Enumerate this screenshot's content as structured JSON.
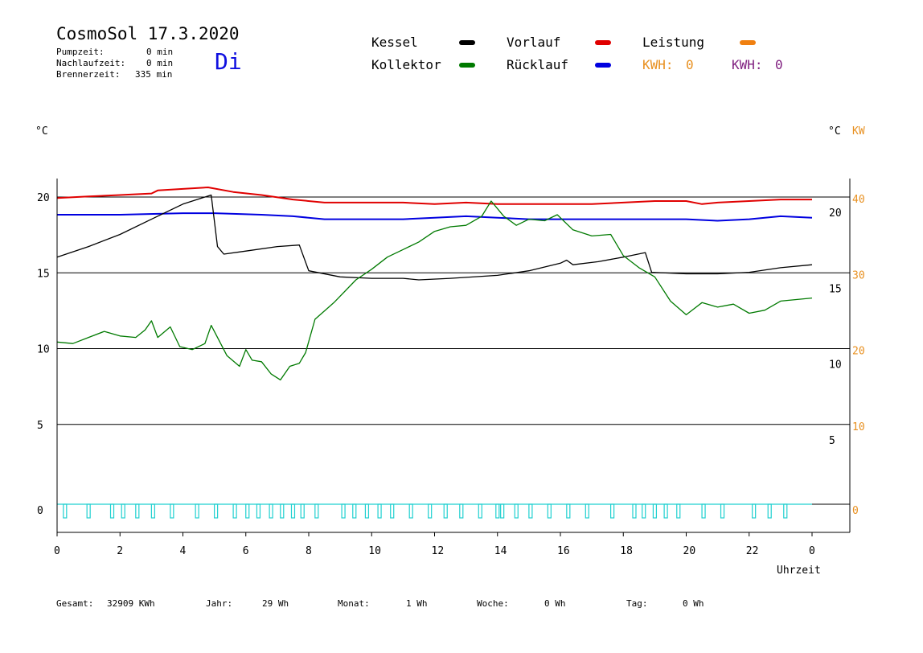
{
  "header": {
    "title": "CosmoSol 17.3.2020",
    "day": "Di",
    "stats": [
      {
        "label": "Pumpzeit:",
        "value": "0 min"
      },
      {
        "label": "Nachlaufzeit:",
        "value": "0 min"
      },
      {
        "label": "Brennerzeit:",
        "value": "335 min"
      }
    ]
  },
  "legend": {
    "kessel": {
      "label": "Kessel",
      "color": "#000000"
    },
    "vorlauf": {
      "label": "Vorlauf",
      "color": "#e00000"
    },
    "leistung": {
      "label": "Leistung",
      "color": "#f08010"
    },
    "kollektor": {
      "label": "Kollektor",
      "color": "#007a00"
    },
    "ruecklauf": {
      "label": "Rücklauf",
      "color": "#0000e0"
    },
    "kwh1": {
      "label": "KWH:",
      "value": "0",
      "color": "#e89020"
    },
    "kwh2": {
      "label": "KWH:",
      "value": "0",
      "color": "#802080"
    }
  },
  "units": {
    "left": "°C",
    "right_c": "°C",
    "right_kw": "KW"
  },
  "footer": [
    {
      "label": "Gesamt:",
      "value": "32909 KWh"
    },
    {
      "label": "Jahr:",
      "value": "29 Wh"
    },
    {
      "label": "Monat:",
      "value": "1 Wh"
    },
    {
      "label": "Woche:",
      "value": "0 Wh"
    },
    {
      "label": "Tag:",
      "value": "0 Wh"
    }
  ],
  "chart_data": {
    "type": "line",
    "xlabel": "Uhrzeit",
    "x_ticks": [
      "0",
      "2",
      "4",
      "6",
      "8",
      "10",
      "12",
      "14",
      "16",
      "18",
      "20",
      "22",
      "0"
    ],
    "x_range": [
      0,
      24
    ],
    "y_left_ticks": [
      "20",
      "15",
      "10",
      "5",
      "0"
    ],
    "y_left_range": [
      0,
      20
    ],
    "y_right_c_ticks": [
      "20",
      "15",
      "10",
      "5"
    ],
    "y_right_kw_ticks": [
      "40",
      "30",
      "20",
      "10",
      "0"
    ],
    "grid": true,
    "series": [
      {
        "name": "Vorlauf",
        "color": "#e00000",
        "points": [
          [
            0,
            20.2
          ],
          [
            1,
            20.3
          ],
          [
            2,
            20.4
          ],
          [
            3,
            20.5
          ],
          [
            3.2,
            20.7
          ],
          [
            4,
            20.8
          ],
          [
            4.8,
            20.9
          ],
          [
            5.6,
            20.6
          ],
          [
            6.5,
            20.4
          ],
          [
            7.5,
            20.1
          ],
          [
            8.5,
            19.9
          ],
          [
            10,
            19.9
          ],
          [
            11,
            19.9
          ],
          [
            12,
            19.8
          ],
          [
            13,
            19.9
          ],
          [
            14,
            19.8
          ],
          [
            15,
            19.8
          ],
          [
            16,
            19.8
          ],
          [
            17,
            19.8
          ],
          [
            18,
            19.9
          ],
          [
            19,
            20.0
          ],
          [
            20,
            20.0
          ],
          [
            20.5,
            19.8
          ],
          [
            21,
            19.9
          ],
          [
            22,
            20.0
          ],
          [
            23,
            20.1
          ],
          [
            24,
            20.1
          ]
        ]
      },
      {
        "name": "Rücklauf",
        "color": "#0000e0",
        "points": [
          [
            0,
            19.1
          ],
          [
            2,
            19.1
          ],
          [
            4,
            19.2
          ],
          [
            5,
            19.2
          ],
          [
            6.5,
            19.1
          ],
          [
            7.5,
            19.0
          ],
          [
            8.5,
            18.8
          ],
          [
            10,
            18.8
          ],
          [
            11,
            18.8
          ],
          [
            12,
            18.9
          ],
          [
            13,
            19.0
          ],
          [
            14,
            18.9
          ],
          [
            15,
            18.8
          ],
          [
            16,
            18.8
          ],
          [
            17,
            18.8
          ],
          [
            18,
            18.8
          ],
          [
            19,
            18.8
          ],
          [
            20,
            18.8
          ],
          [
            21,
            18.7
          ],
          [
            22,
            18.8
          ],
          [
            23,
            19.0
          ],
          [
            24,
            18.9
          ]
        ]
      },
      {
        "name": "Kessel",
        "color": "#000000",
        "points": [
          [
            0,
            16.3
          ],
          [
            1,
            17.0
          ],
          [
            2,
            17.8
          ],
          [
            3,
            18.8
          ],
          [
            4,
            19.8
          ],
          [
            4.9,
            20.4
          ],
          [
            5.1,
            17.0
          ],
          [
            5.3,
            16.5
          ],
          [
            6,
            16.7
          ],
          [
            7,
            17.0
          ],
          [
            7.7,
            17.1
          ],
          [
            8,
            15.4
          ],
          [
            9,
            15.0
          ],
          [
            10,
            14.9
          ],
          [
            11,
            14.9
          ],
          [
            11.5,
            14.8
          ],
          [
            12.5,
            14.9
          ],
          [
            14,
            15.1
          ],
          [
            15,
            15.4
          ],
          [
            16,
            15.9
          ],
          [
            16.2,
            16.1
          ],
          [
            16.4,
            15.8
          ],
          [
            17.2,
            16.0
          ],
          [
            18,
            16.3
          ],
          [
            18.7,
            16.6
          ],
          [
            18.9,
            15.3
          ],
          [
            20,
            15.2
          ],
          [
            21,
            15.2
          ],
          [
            22,
            15.3
          ],
          [
            23,
            15.6
          ],
          [
            24,
            15.8
          ]
        ]
      },
      {
        "name": "Kollektor",
        "color": "#007a00",
        "points": [
          [
            0,
            10.7
          ],
          [
            0.5,
            10.6
          ],
          [
            1,
            11.0
          ],
          [
            1.5,
            11.4
          ],
          [
            2,
            11.1
          ],
          [
            2.5,
            11.0
          ],
          [
            2.8,
            11.5
          ],
          [
            3.0,
            12.1
          ],
          [
            3.2,
            11.0
          ],
          [
            3.6,
            11.7
          ],
          [
            3.9,
            10.4
          ],
          [
            4.3,
            10.2
          ],
          [
            4.7,
            10.6
          ],
          [
            4.9,
            11.8
          ],
          [
            5.1,
            11.0
          ],
          [
            5.4,
            9.8
          ],
          [
            5.8,
            9.1
          ],
          [
            6.0,
            10.2
          ],
          [
            6.2,
            9.5
          ],
          [
            6.5,
            9.4
          ],
          [
            6.8,
            8.6
          ],
          [
            7.1,
            8.2
          ],
          [
            7.4,
            9.1
          ],
          [
            7.7,
            9.3
          ],
          [
            7.9,
            10.0
          ],
          [
            8.2,
            12.2
          ],
          [
            8.8,
            13.3
          ],
          [
            9.5,
            14.8
          ],
          [
            10,
            15.5
          ],
          [
            10.5,
            16.3
          ],
          [
            11,
            16.8
          ],
          [
            11.5,
            17.3
          ],
          [
            12,
            18.0
          ],
          [
            12.5,
            18.3
          ],
          [
            13,
            18.4
          ],
          [
            13.5,
            19.0
          ],
          [
            13.8,
            20.0
          ],
          [
            14.2,
            19.0
          ],
          [
            14.6,
            18.4
          ],
          [
            15,
            18.8
          ],
          [
            15.5,
            18.7
          ],
          [
            15.9,
            19.1
          ],
          [
            16.4,
            18.1
          ],
          [
            17,
            17.7
          ],
          [
            17.6,
            17.8
          ],
          [
            18,
            16.4
          ],
          [
            18.5,
            15.6
          ],
          [
            19,
            15.0
          ],
          [
            19.5,
            13.4
          ],
          [
            20,
            12.5
          ],
          [
            20.5,
            13.3
          ],
          [
            21,
            13.0
          ],
          [
            21.5,
            13.2
          ],
          [
            22,
            12.6
          ],
          [
            22.5,
            12.8
          ],
          [
            23,
            13.4
          ],
          [
            23.5,
            13.5
          ],
          [
            24,
            13.6
          ]
        ]
      }
    ],
    "pump_pulses_x": [
      0.2,
      0.95,
      1.7,
      2.05,
      2.5,
      3.0,
      3.6,
      4.4,
      5.0,
      5.6,
      6.0,
      6.35,
      6.75,
      7.1,
      7.45,
      7.75,
      8.2,
      9.05,
      9.4,
      9.8,
      10.2,
      10.6,
      11.2,
      11.8,
      12.3,
      12.8,
      13.4,
      13.95,
      14.1,
      14.55,
      15.0,
      15.6,
      16.2,
      16.8,
      17.6,
      18.3,
      18.6,
      18.95,
      19.3,
      19.7,
      20.5,
      21.1,
      22.1,
      22.6,
      23.1
    ]
  }
}
